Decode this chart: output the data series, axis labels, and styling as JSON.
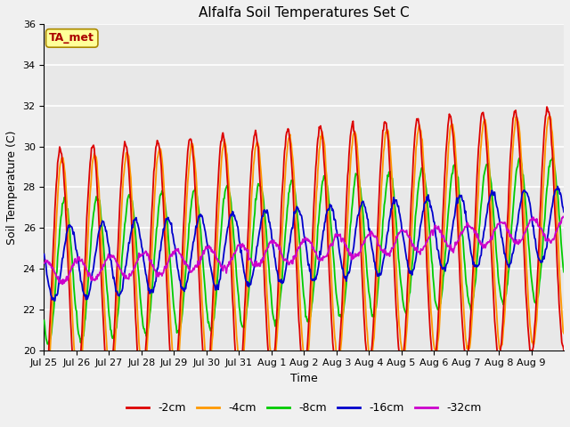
{
  "title": "Alfalfa Soil Temperatures Set C",
  "xlabel": "Time",
  "ylabel": "Soil Temperature (C)",
  "ylim": [
    20,
    36
  ],
  "n_days": 16,
  "background_color": "#e8e8e8",
  "grid_color": "white",
  "xtick_labels": [
    "Jul 25",
    "Jul 26",
    "Jul 27",
    "Jul 28",
    "Jul 29",
    "Jul 30",
    "Jul 31",
    "Aug 1",
    "Aug 2",
    "Aug 3",
    "Aug 4",
    "Aug 5",
    "Aug 6",
    "Aug 7",
    "Aug 8",
    "Aug 9"
  ],
  "legend_labels": [
    "-2cm",
    "-4cm",
    "-8cm",
    "-16cm",
    "-32cm"
  ],
  "series_colors": [
    "#dd0000",
    "#ff9900",
    "#00cc00",
    "#0000cc",
    "#cc00cc"
  ],
  "annotation_text": "TA_met",
  "annotation_color": "#aa0000",
  "annotation_bg": "#ffff99",
  "annotation_edge": "#aa8800",
  "linewidth": 1.3,
  "title_fontsize": 11,
  "axis_fontsize": 9,
  "tick_fontsize": 8,
  "legend_fontsize": 9,
  "yticks": [
    20,
    22,
    24,
    26,
    28,
    30,
    32,
    34,
    36
  ],
  "fig_bg": "#f0f0f0",
  "n_points_per_day": 48,
  "amp_2cm": 6.0,
  "amp_4cm": 5.6,
  "amp_8cm": 3.5,
  "amp_16cm": 1.8,
  "amp_32cm": 0.55,
  "phase_2cm": 0.0,
  "phase_4cm": 0.35,
  "phase_8cm": 0.85,
  "phase_16cm": 1.9,
  "phase_32cm": 3.5,
  "base_2cm": 26.3,
  "base_4cm": 26.2,
  "base_8cm": 26.3,
  "base_16cm": 26.3,
  "base_32cm": 25.2,
  "trend_2cm": [
    23.8,
    26.0
  ],
  "trend_4cm": [
    23.8,
    26.0
  ],
  "trend_8cm": [
    23.8,
    26.0
  ],
  "trend_16cm": [
    24.2,
    26.2
  ],
  "trend_32cm": [
    23.8,
    26.0
  ]
}
